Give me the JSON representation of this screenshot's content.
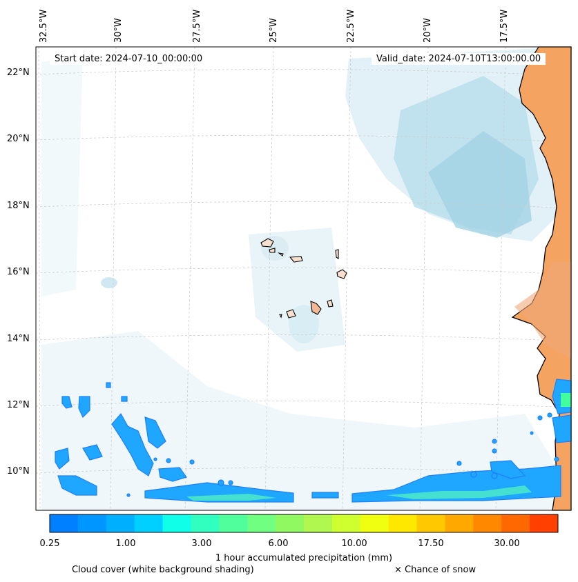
{
  "map": {
    "start_date": "Start date: 2024-07-10_00:00:00",
    "valid_date": "Valid_date: 2024-07-10T13:00:00.00",
    "longitude_labels": [
      "32.5°W",
      "30°W",
      "27.5°W",
      "25°W",
      "22.5°W",
      "20°W",
      "17.5°W"
    ],
    "latitude_labels": [
      "22°N",
      "20°N",
      "18°N",
      "16°N",
      "14°N",
      "12°N",
      "10°N"
    ],
    "land_color": "#f4a460",
    "coastline_color": "#000000",
    "cloud_shade_color": "#a8d8e6",
    "gridline_color": "#cccccc"
  },
  "colorbar": {
    "title": "1 hour accumulated precipitation (mm)",
    "tick_labels": [
      "0.25",
      "1.00",
      "3.00",
      "6.00",
      "10.00",
      "17.50",
      "30.00"
    ],
    "colors": [
      "#0080ff",
      "#0096ff",
      "#00b0ff",
      "#00d0ff",
      "#10ffe8",
      "#30ffc0",
      "#50ff9c",
      "#70ff80",
      "#90f860",
      "#b0f850",
      "#d0ff30",
      "#f0ff10",
      "#ffe800",
      "#ffc800",
      "#ffa800",
      "#ff8800",
      "#ff6800",
      "#ff4000"
    ]
  },
  "footer": {
    "cloud_note": "Cloud cover (white background shading)",
    "snow_note": "× Chance of snow"
  }
}
